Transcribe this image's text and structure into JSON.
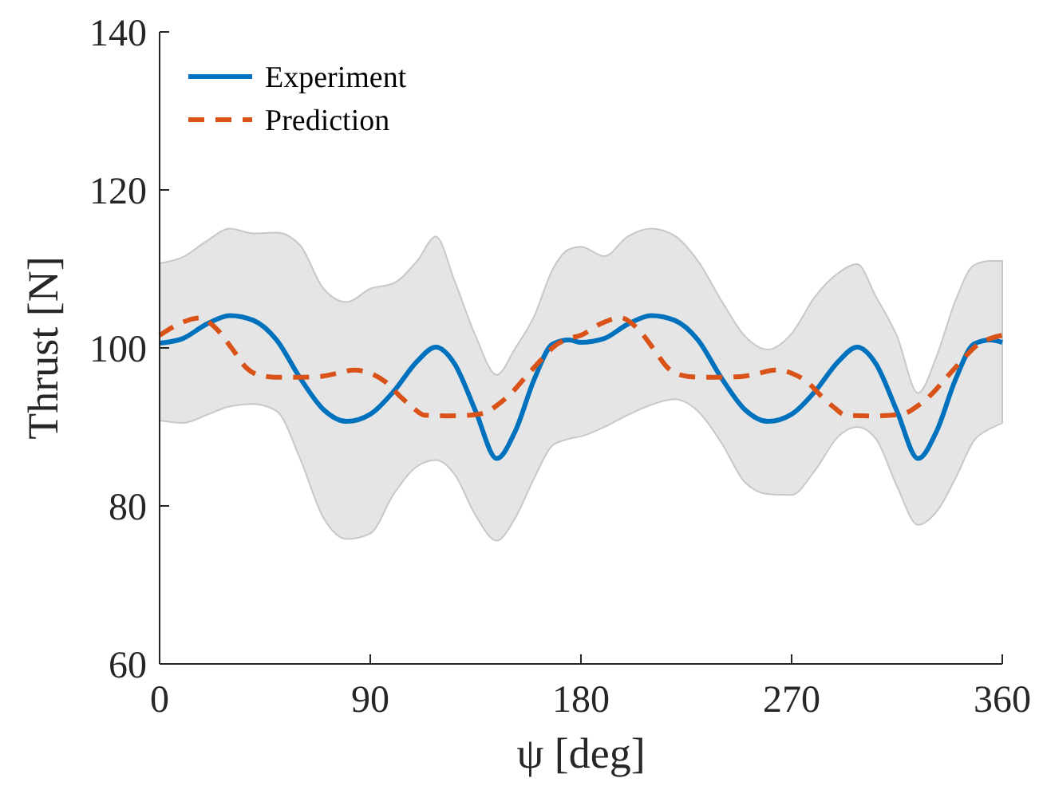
{
  "chart_data": {
    "type": "line",
    "xlabel": "ψ [deg]",
    "ylabel": "Thrust [N]",
    "xlim": [
      0,
      360
    ],
    "ylim": [
      60,
      140
    ],
    "xticks": [
      0,
      90,
      180,
      270,
      360
    ],
    "yticks": [
      60,
      80,
      100,
      120,
      140
    ],
    "grid": false,
    "legend": "top left",
    "marker": "none",
    "series": [
      {
        "name": "Experiment",
        "color": "#0072bd",
        "line_style": "solid",
        "x": [
          0,
          10,
          20,
          30,
          40,
          50,
          60,
          70,
          80,
          90,
          100,
          110,
          118,
          126,
          135,
          144,
          152,
          160,
          168,
          175,
          180,
          190,
          200,
          210,
          220,
          230,
          240,
          250,
          260,
          270,
          280,
          290,
          298,
          306,
          315,
          324,
          332,
          340,
          348,
          355,
          360
        ],
        "values": [
          100.6,
          101.2,
          103.0,
          104.1,
          103.5,
          101.0,
          96.2,
          92.2,
          90.7,
          91.6,
          94.5,
          98.3,
          100.1,
          98.0,
          92.0,
          86.0,
          89.5,
          96.0,
          100.5,
          101.0,
          100.7,
          101.2,
          103.0,
          104.1,
          103.5,
          101.0,
          96.2,
          92.2,
          90.7,
          91.6,
          94.5,
          98.3,
          100.1,
          98.0,
          92.0,
          86.0,
          89.5,
          96.0,
          100.5,
          101.0,
          100.7
        ],
        "upper": [
          110.7,
          111.5,
          113.5,
          115.1,
          114.5,
          114.6,
          113,
          107.5,
          105.8,
          107.5,
          108.2,
          111,
          114.1,
          108.5,
          101.5,
          96.6,
          100,
          104,
          110,
          112.5,
          112.8,
          111.6,
          114.1,
          115.1,
          114.2,
          111,
          106,
          101.5,
          99.8,
          101.8,
          106.5,
          109.5,
          110.6,
          106.5,
          101.5,
          94.3,
          99,
          106,
          110.5,
          111,
          111
        ],
        "lower": [
          90.8,
          90.5,
          91.5,
          92.6,
          92.9,
          92,
          86,
          78.5,
          75.8,
          76.5,
          81.5,
          85,
          85.8,
          84,
          78.8,
          75.6,
          78.5,
          83.5,
          87.7,
          88.5,
          88.8,
          90,
          91.5,
          92.8,
          93.5,
          92,
          88,
          83,
          81.5,
          81.4,
          84.5,
          88.8,
          90,
          88.5,
          82.5,
          77.6,
          79.3,
          83.5,
          88.3,
          89.8,
          90.5
        ]
      },
      {
        "name": "Prediction",
        "color": "#d95319",
        "line_style": "dashed",
        "x": [
          0,
          8,
          17,
          24,
          31,
          37,
          42,
          50,
          60,
          69,
          76,
          83,
          90,
          97,
          103,
          108,
          113,
          123,
          133,
          139,
          144,
          150,
          156,
          163,
          169,
          175,
          180,
          188,
          197,
          204,
          211,
          217,
          222,
          230,
          240,
          249,
          256,
          263,
          270,
          277,
          283,
          288,
          293,
          303,
          313,
          319,
          324,
          330,
          336,
          343,
          349,
          355,
          360
        ],
        "values": [
          101.6,
          103,
          103.8,
          102.5,
          99.9,
          97.5,
          96.6,
          96.3,
          96.3,
          96.4,
          96.8,
          97.2,
          96.8,
          95.6,
          93.8,
          92.5,
          91.5,
          91.4,
          91.5,
          91.8,
          92.7,
          94.2,
          96.2,
          98.5,
          100.3,
          101.2,
          101.6,
          103,
          103.8,
          102.5,
          99.9,
          97.5,
          96.6,
          96.3,
          96.3,
          96.4,
          96.8,
          97.2,
          96.8,
          95.6,
          93.8,
          92.5,
          91.5,
          91.4,
          91.5,
          91.8,
          92.7,
          94.2,
          96.2,
          98.5,
          100.3,
          101.2,
          101.6
        ]
      }
    ]
  }
}
